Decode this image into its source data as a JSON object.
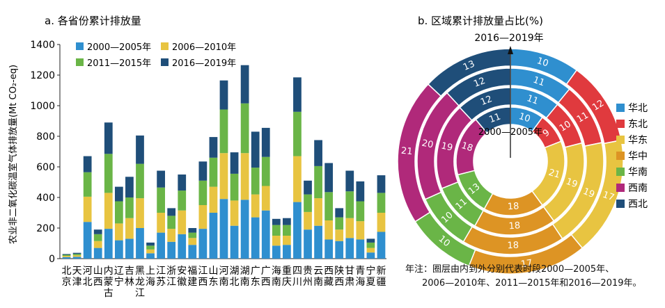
{
  "chart_data": [
    {
      "type": "bar",
      "stacked": true,
      "title": "a. 各省份累计排放量",
      "ylabel": "农业非二氧化碳温室气体排放量(Mt CO₂-eq)",
      "xlabel": "",
      "ylim": [
        0,
        1400
      ],
      "yticks": [
        0,
        200,
        400,
        600,
        800,
        1000,
        1200,
        1400
      ],
      "legend_position": "top-left",
      "categories": [
        "北京",
        "天津",
        "河北",
        "山西",
        "内蒙古",
        "辽宁",
        "吉林",
        "黑龙江",
        "上海",
        "江苏",
        "浙江",
        "安徽",
        "福建",
        "江西",
        "山东",
        "河南",
        "湖北",
        "湖南",
        "广东",
        "广西",
        "海南",
        "重庆",
        "四川",
        "贵州",
        "云南",
        "西藏",
        "陕西",
        "甘肃",
        "青海",
        "宁夏",
        "新疆"
      ],
      "series": [
        {
          "name": "2000—2005年",
          "color": "#2f8fcf",
          "values": [
            10,
            12,
            240,
            70,
            195,
            120,
            130,
            200,
            35,
            170,
            110,
            160,
            90,
            195,
            300,
            390,
            215,
            385,
            270,
            315,
            85,
            90,
            370,
            190,
            215,
            125,
            115,
            135,
            125,
            40,
            175
          ]
        },
        {
          "name": "2006—2010年",
          "color": "#e8c441",
          "values": [
            8,
            10,
            165,
            45,
            235,
            110,
            135,
            195,
            25,
            130,
            85,
            155,
            45,
            155,
            170,
            300,
            165,
            305,
            150,
            160,
            65,
            60,
            300,
            115,
            180,
            125,
            75,
            130,
            120,
            30,
            125
          ]
        },
        {
          "name": "2011—2015年",
          "color": "#6ab547",
          "values": [
            7,
            9,
            160,
            45,
            255,
            145,
            135,
            225,
            25,
            165,
            85,
            130,
            35,
            160,
            190,
            285,
            175,
            325,
            175,
            190,
            70,
            70,
            290,
            115,
            210,
            185,
            80,
            175,
            130,
            35,
            130
          ]
        },
        {
          "name": "2016—2019年",
          "color": "#1f4e79",
          "values": [
            5,
            7,
            105,
            30,
            205,
            95,
            135,
            185,
            20,
            110,
            50,
            105,
            30,
            125,
            135,
            190,
            140,
            250,
            235,
            190,
            40,
            45,
            225,
            90,
            170,
            190,
            60,
            135,
            130,
            25,
            115
          ]
        }
      ]
    },
    {
      "type": "pie",
      "subtype": "nested-donut",
      "title": "b. 区域累计排放量占比(%)",
      "top_label": "2016—2019年",
      "inner_label": "2000—2005年",
      "categories": [
        "华北",
        "东北",
        "华东",
        "华中",
        "华南",
        "西南",
        "西北"
      ],
      "colors": [
        "#2f8fcf",
        "#e03a3e",
        "#e8c441",
        "#dd9424",
        "#6ab547",
        "#b0297a",
        "#1f4e79"
      ],
      "rings": [
        {
          "name": "2000—2005年",
          "values": [
            10,
            9,
            21,
            18,
            13,
            18,
            11
          ]
        },
        {
          "name": "2006—2010年",
          "values": [
            11,
            10,
            19,
            18,
            11,
            19,
            12
          ]
        },
        {
          "name": "2011—2015年",
          "values": [
            11,
            11,
            19,
            18,
            10,
            20,
            12
          ]
        },
        {
          "name": "2016—2019年",
          "values": [
            10,
            12,
            17,
            17,
            10,
            21,
            13
          ]
        }
      ]
    }
  ],
  "note": {
    "line1": "年注：圈层由内到外分别代表时段2000—2005年、",
    "line2": "2006—2010年、2011—2015年和2016—2019年。"
  }
}
